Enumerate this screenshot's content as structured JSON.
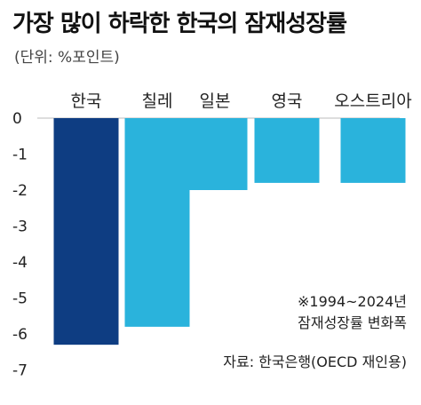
{
  "title": "가장 많이 하락한 한국의 잠재성장률",
  "subtitle": "(단위: %포인트)",
  "notes": {
    "period": "※1994~2024년",
    "measure": "잠재성장률 변화폭",
    "source": "자료: 한국은행(OECD 재인용)"
  },
  "colors": {
    "korea": "#0e3d82",
    "others": "#2ab3dc",
    "axis": "#bbbbbb"
  },
  "chart_data": {
    "type": "bar",
    "categories": [
      "한국",
      "칠레",
      "일본",
      "영국",
      "오스트리아"
    ],
    "values": [
      -6.3,
      -5.8,
      -2.0,
      -1.8,
      -1.8
    ],
    "title": "가장 많이 하락한 한국의 잠재성장률",
    "ylabel": "",
    "ylim": [
      -7,
      0
    ],
    "yticks": [
      "0",
      "-1",
      "-2",
      "-3",
      "-4",
      "-5",
      "-6",
      "-7"
    ],
    "grid": false,
    "legend": "none"
  }
}
